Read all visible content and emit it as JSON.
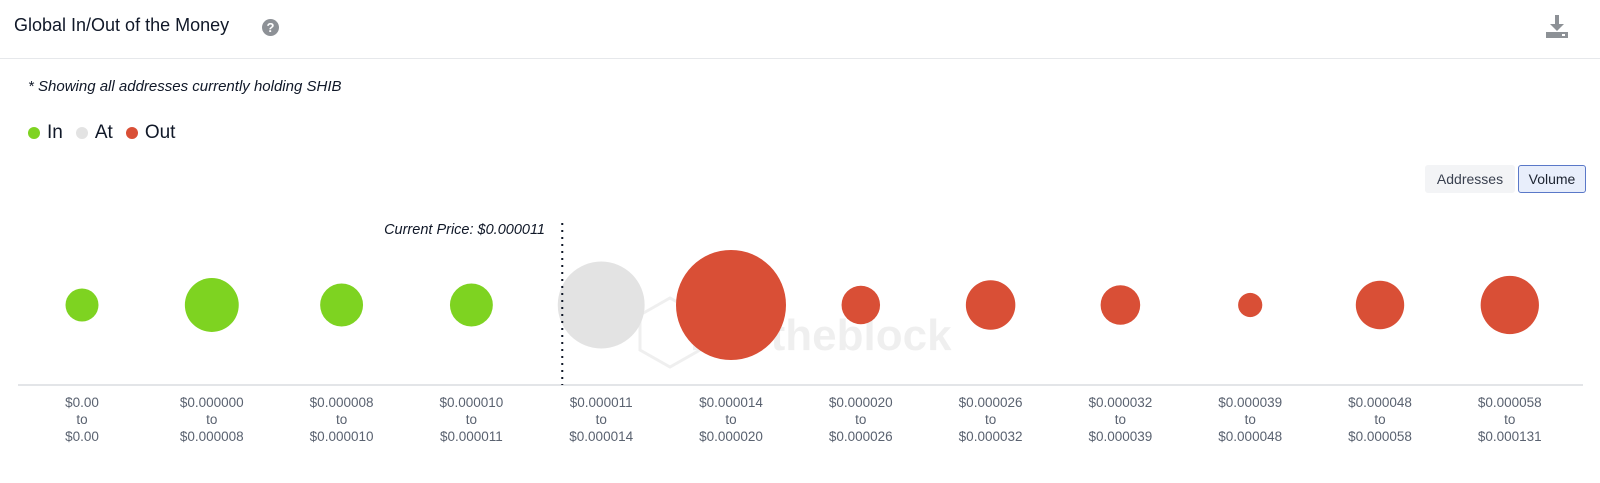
{
  "header": {
    "title": "Global In/Out of the Money",
    "help_icon": "question-circle-icon",
    "download_icon": "download-icon"
  },
  "note": "* Showing all addresses currently holding SHIB",
  "legend": [
    {
      "label": "In",
      "color": "#7ed321"
    },
    {
      "label": "At",
      "color": "#e3e3e3"
    },
    {
      "label": "Out",
      "color": "#d94f36"
    }
  ],
  "toggles": {
    "addresses": "Addresses",
    "volume": "Volume",
    "selected": "Volume"
  },
  "chart_data": {
    "type": "scatter",
    "encoding": "bubble size = volume",
    "current_price_label": "Current Price: $0.000011",
    "current_price_after_index": 3,
    "categories": [
      {
        "from": "$0.00",
        "to": "$0.00",
        "status": "In",
        "size": 0.3
      },
      {
        "from": "$0.000000",
        "to": "$0.000008",
        "status": "In",
        "size": 0.49
      },
      {
        "from": "$0.000008",
        "to": "$0.000010",
        "status": "In",
        "size": 0.39
      },
      {
        "from": "$0.000010",
        "to": "$0.000011",
        "status": "In",
        "size": 0.39
      },
      {
        "from": "$0.000011",
        "to": "$0.000014",
        "status": "At",
        "size": 0.79
      },
      {
        "from": "$0.000014",
        "to": "$0.000020",
        "status": "Out",
        "size": 1.0
      },
      {
        "from": "$0.000020",
        "to": "$0.000026",
        "status": "Out",
        "size": 0.35
      },
      {
        "from": "$0.000026",
        "to": "$0.000032",
        "status": "Out",
        "size": 0.45
      },
      {
        "from": "$0.000032",
        "to": "$0.000039",
        "status": "Out",
        "size": 0.36
      },
      {
        "from": "$0.000039",
        "to": "$0.000048",
        "status": "Out",
        "size": 0.22
      },
      {
        "from": "$0.000048",
        "to": "$0.000058",
        "status": "Out",
        "size": 0.44
      },
      {
        "from": "$0.000058",
        "to": "$0.000131",
        "status": "Out",
        "size": 0.53
      }
    ],
    "range_connector": "to",
    "colors": {
      "In": "#7ed321",
      "At": "#e3e3e3",
      "Out": "#d94f36"
    }
  }
}
